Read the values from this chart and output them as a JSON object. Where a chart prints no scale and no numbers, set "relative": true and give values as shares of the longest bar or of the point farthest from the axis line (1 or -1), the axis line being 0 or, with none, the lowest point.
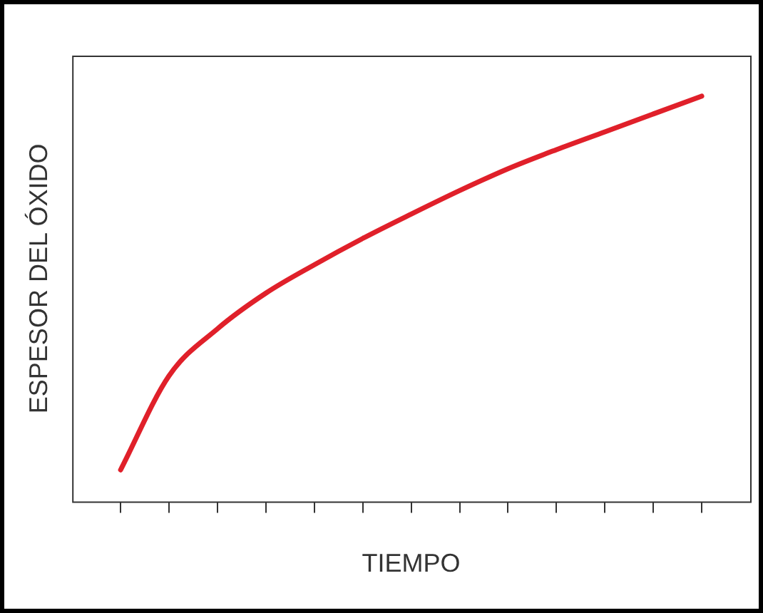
{
  "chart_data": {
    "type": "line",
    "relative": true,
    "xlabel": "TIEMPO",
    "ylabel": "ESPESOR DEL ÓXIDO",
    "categories": [
      null,
      null,
      null,
      null,
      null,
      null,
      null,
      null,
      null,
      null,
      null,
      null,
      null
    ],
    "series": [
      {
        "color": "#e0202a",
        "values": [
          0.078,
          0.31,
          0.426,
          0.514,
          0.584,
          0.649,
          0.709,
          0.767,
          0.821,
          0.868,
          0.912,
          0.956,
          1
        ]
      }
    ],
    "marker": "none",
    "line_style": "solid",
    "grid": false,
    "legend": false
  }
}
